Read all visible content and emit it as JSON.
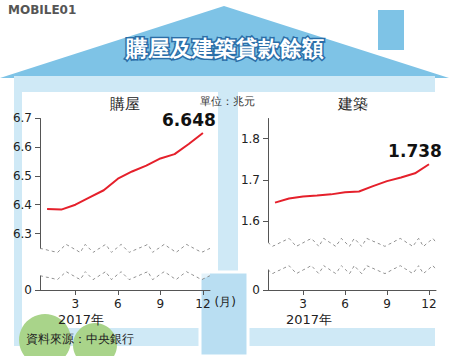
{
  "watermark": "MOBILE01",
  "title": "購屋及建築貸款餘額",
  "unit": "單位：兆元",
  "source": "資料來源：中央銀行",
  "chart_data": [
    {
      "type": "line",
      "title": "購屋",
      "subtitle": "2017年",
      "xlabel": "(月)",
      "x": [
        1,
        2,
        3,
        4,
        5,
        6,
        7,
        8,
        9,
        10,
        11,
        12
      ],
      "values": [
        6.385,
        6.383,
        6.4,
        6.425,
        6.45,
        6.49,
        6.515,
        6.535,
        6.56,
        6.575,
        6.61,
        6.648
      ],
      "color": "#e5202b",
      "xlim": [
        0.5,
        12.5
      ],
      "xticks": [
        3,
        6,
        9,
        12
      ],
      "ylim": [
        0,
        6.7
      ],
      "yticks": [
        0,
        6.3,
        6.4,
        6.5,
        6.6,
        6.7
      ],
      "grid": false,
      "annotations": [
        {
          "x": 12,
          "y": 6.648,
          "label": "6.648"
        }
      ]
    },
    {
      "type": "line",
      "title": "建築",
      "subtitle": "2017年",
      "x": [
        1,
        2,
        3,
        4,
        5,
        6,
        7,
        8,
        9,
        10,
        11,
        12
      ],
      "values": [
        1.645,
        1.655,
        1.66,
        1.662,
        1.665,
        1.67,
        1.672,
        1.685,
        1.697,
        1.706,
        1.716,
        1.738
      ],
      "color": "#e5202b",
      "xlim": [
        0.5,
        12.5
      ],
      "xticks": [
        3,
        6,
        9,
        12
      ],
      "ylim": [
        0,
        1.85
      ],
      "yticks": [
        0,
        1.6,
        1.7,
        1.8
      ],
      "grid": false,
      "annotations": [
        {
          "x": 12,
          "y": 1.738,
          "label": "1.738"
        }
      ]
    }
  ]
}
